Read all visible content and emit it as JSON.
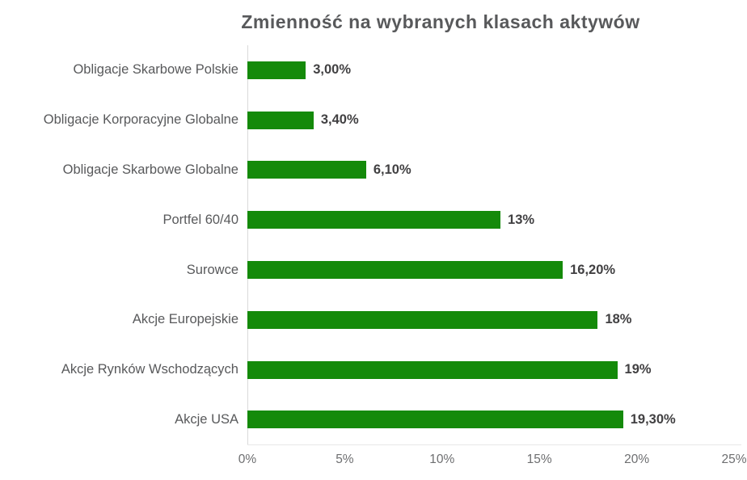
{
  "chart_data": {
    "type": "bar",
    "orientation": "horizontal",
    "title": "Zmienność na wybranych klasach aktywów",
    "categories": [
      "Obligacje Skarbowe Polskie",
      "Obligacje Korporacyjne Globalne",
      "Obligacje Skarbowe Globalne",
      "Portfel 60/40",
      "Surowce",
      "Akcje Europejskie",
      "Akcje Rynków Wschodzących",
      "Akcje USA"
    ],
    "values": [
      3.0,
      3.4,
      6.1,
      13,
      16.2,
      18,
      19,
      19.3
    ],
    "value_labels": [
      "3,00%",
      "3,40%",
      "6,10%",
      "13%",
      "16,20%",
      "18%",
      "19%",
      "19,30%"
    ],
    "xlabel": "",
    "ylabel": "",
    "xlim": [
      0,
      25
    ],
    "x_ticks": [
      "0%",
      "5%",
      "10%",
      "15%",
      "20%",
      "25%"
    ],
    "grid": "zero-line-only",
    "legend": "none",
    "colors": {
      "bar": "#148a0a",
      "title": "#58595b",
      "category_label": "#58595b",
      "value_label": "#414042",
      "axis_line": "#d9d9d9",
      "tick_label": "#6d6e70"
    }
  }
}
